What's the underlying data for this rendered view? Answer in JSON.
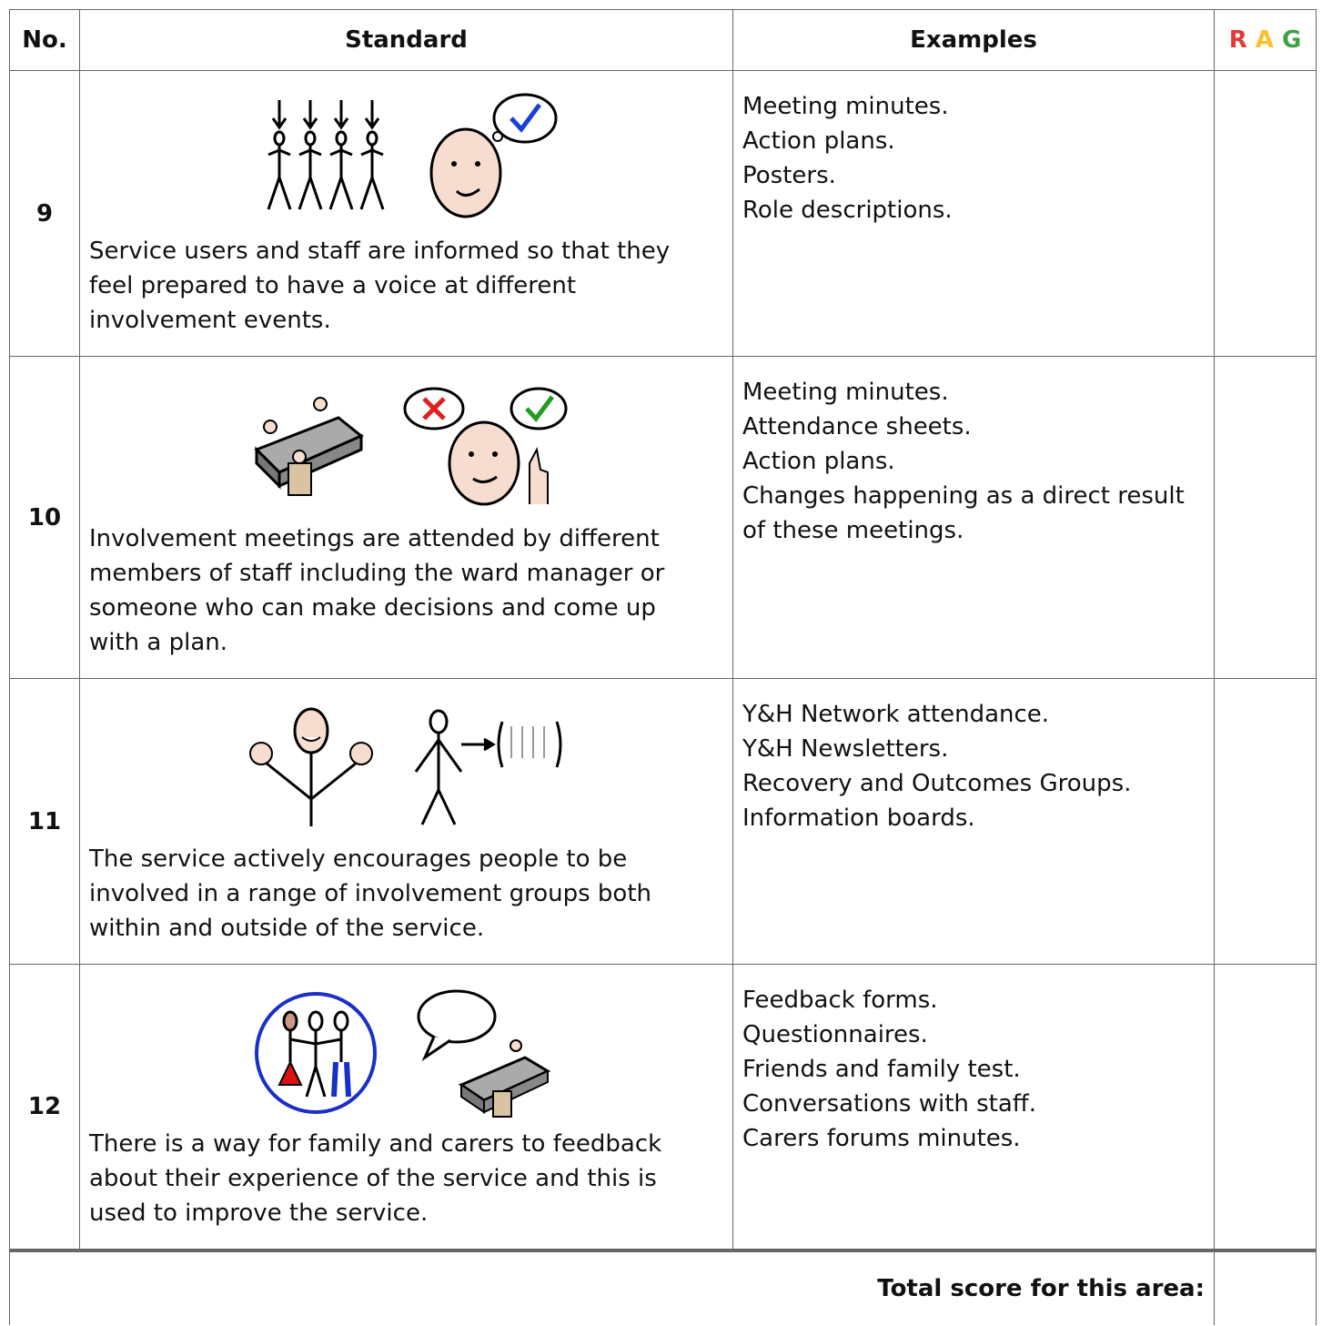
{
  "table": {
    "header": {
      "number": "No.",
      "standard": "Standard",
      "examples": "Examples",
      "rag": [
        "R",
        "A",
        "G"
      ]
    },
    "rows": [
      {
        "number": "9",
        "standard": "Service users and staff are informed so that they feel prepared to have a voice at different involvement events.",
        "examples": [
          "Meeting minutes.",
          "Action plans.",
          "Posters.",
          "Role descriptions."
        ]
      },
      {
        "number": "10",
        "standard": "Involvement meetings are attended by different members of staff including the ward manager or someone who can make decisions and come up with a plan.",
        "examples": [
          "Meeting minutes.",
          "Attendance sheets.",
          "Action plans.",
          "Changes happening as a direct result of these meetings."
        ]
      },
      {
        "number": "11",
        "standard": "The service actively encourages people to be involved in a range of involvement groups both within and outside of the service.",
        "examples": [
          "Y&H Network attendance.",
          "Y&H Newsletters.",
          "Recovery and Outcomes Groups.",
          "Information boards."
        ]
      },
      {
        "number": "12",
        "standard": "There is a way for family and carers to feedback about their experience of the service and this is used to improve the service.",
        "examples": [
          "Feedback forms.",
          "Questionnaires.",
          "Friends and family test.",
          "Conversations with staff.",
          "Carers forums minutes."
        ]
      }
    ],
    "footer": "Total score for this area:"
  }
}
